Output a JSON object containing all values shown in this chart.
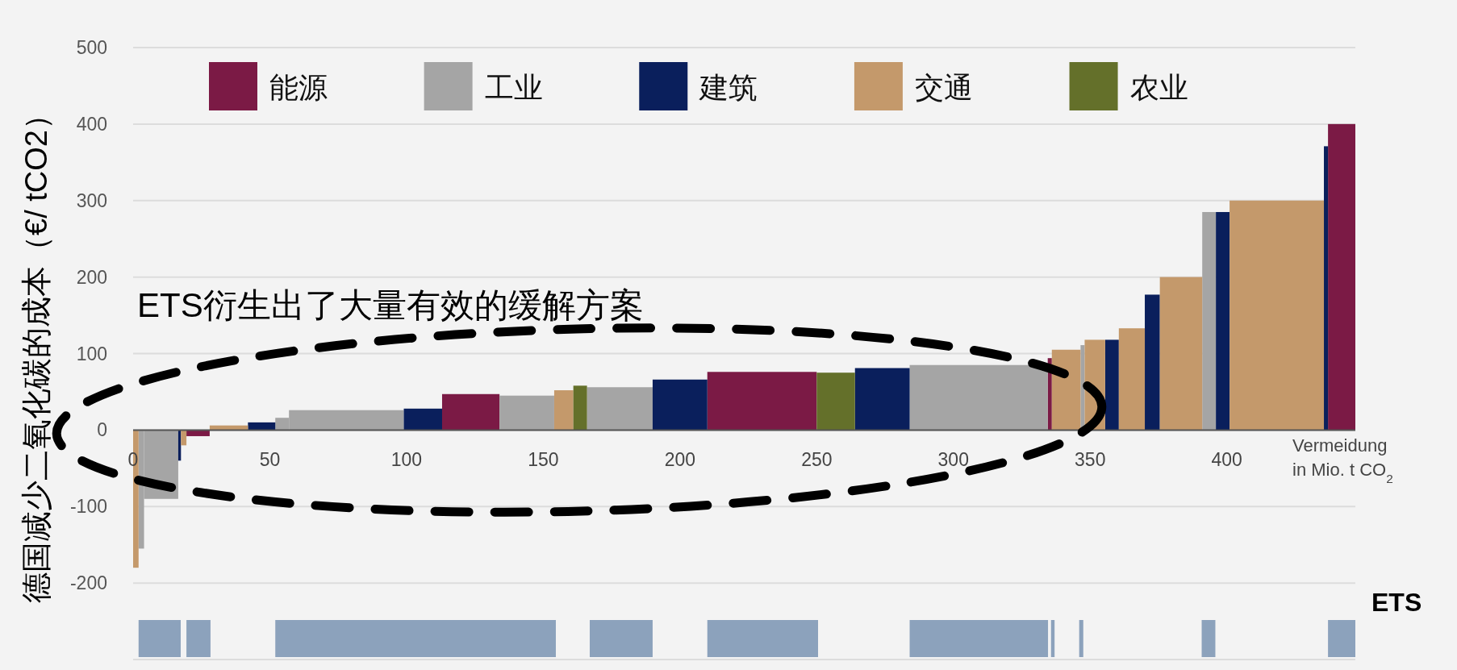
{
  "chart_data": {
    "type": "histogram",
    "ylabel": "德国减少二氧化碳的成本（€/ tCO2）",
    "xlabel": "Vermeidung in Mio. t CO$_{2}$",
    "annotations": [
      "ETS衍生出了大量有效的缓解方案"
    ],
    "bins": [
      0,
      2,
      4,
      16.5,
      17.5,
      19.5,
      28,
      42,
      52,
      57,
      99,
      113,
      134,
      154,
      161,
      166,
      190,
      210,
      250,
      264,
      284,
      334.5,
      336,
      346.5,
      348,
      355.5,
      360.5,
      370,
      375.5,
      391,
      396,
      401,
      435.5,
      437,
      447
    ],
    "series": [
      {
        "name": "能源",
        "color": "#7b1a45",
        "values": [
          null,
          null,
          null,
          null,
          null,
          -8,
          null,
          null,
          null,
          null,
          null,
          47,
          null,
          null,
          null,
          null,
          null,
          76,
          null,
          null,
          null,
          94,
          null,
          null,
          null,
          null,
          null,
          null,
          null,
          null,
          null,
          null,
          null,
          400
        ]
      },
      {
        "name": "工业",
        "color": "#a5a5a5",
        "values": [
          null,
          -155,
          -90,
          null,
          null,
          null,
          null,
          null,
          16,
          26,
          null,
          null,
          45,
          null,
          null,
          56,
          null,
          null,
          null,
          null,
          85,
          null,
          null,
          111,
          null,
          null,
          null,
          null,
          null,
          285,
          null,
          null,
          null,
          null
        ]
      },
      {
        "name": "建筑",
        "color": "#0a1f5c",
        "values": [
          null,
          null,
          null,
          -40,
          null,
          null,
          null,
          10,
          null,
          null,
          28,
          null,
          null,
          null,
          null,
          null,
          66,
          null,
          null,
          81,
          null,
          null,
          null,
          null,
          null,
          118,
          null,
          177,
          null,
          null,
          285,
          null,
          371,
          null
        ]
      },
      {
        "name": "交通",
        "color": "#c4996b",
        "values": [
          -180,
          null,
          null,
          null,
          -20,
          null,
          6,
          null,
          null,
          null,
          null,
          null,
          null,
          52,
          null,
          null,
          null,
          null,
          null,
          null,
          null,
          null,
          105,
          null,
          118,
          null,
          133,
          null,
          200,
          null,
          null,
          300,
          null,
          null
        ]
      },
      {
        "name": "农业",
        "color": "#64702a",
        "values": [
          null,
          null,
          null,
          null,
          null,
          null,
          null,
          null,
          null,
          null,
          null,
          null,
          null,
          null,
          58,
          null,
          null,
          null,
          75,
          null,
          null,
          null,
          null,
          null,
          null,
          null,
          null,
          null,
          null,
          null,
          null,
          null,
          null,
          null
        ]
      }
    ],
    "xlim": [
      0,
      447
    ],
    "xticks": [
      0,
      50,
      100,
      150,
      200,
      250,
      300,
      350,
      400
    ],
    "ylim": [
      -300,
      500
    ],
    "yticks": [
      {
        "value": -300,
        "label": null
      },
      -200,
      -100,
      0,
      100,
      200,
      300,
      400,
      500
    ],
    "grid": "y",
    "legend": "top",
    "bands": [
      {
        "axis": "x",
        "from": 2,
        "to": 17.4,
        "color": "#8ca2bc"
      },
      {
        "axis": "x",
        "from": 19.5,
        "to": 28.3,
        "color": "#8ca2bc"
      },
      {
        "axis": "x",
        "from": 52,
        "to": 154.6,
        "color": "#8ca2bc"
      },
      {
        "axis": "x",
        "from": 167,
        "to": 190,
        "color": "#8ca2bc"
      },
      {
        "axis": "x",
        "from": 210,
        "to": 250.5,
        "color": "#8ca2bc"
      },
      {
        "axis": "x",
        "from": 284,
        "to": 334.6,
        "color": "#8ca2bc"
      },
      {
        "axis": "x",
        "from": 335.7,
        "to": 337,
        "color": "#8ca2bc"
      },
      {
        "axis": "x",
        "from": 346,
        "to": 347.5,
        "color": "#8ca2bc"
      },
      {
        "axis": "x",
        "from": 390.8,
        "to": 395.8,
        "color": "#8ca2bc"
      },
      {
        "axis": "x",
        "from": 437,
        "to": 447,
        "color": "#8ca2bc",
        "label": "ETS"
      }
    ]
  }
}
